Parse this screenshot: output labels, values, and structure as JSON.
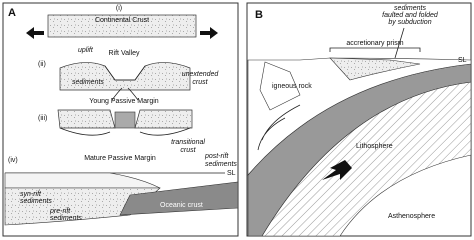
{
  "panel_a": {
    "label": "A",
    "stages": [
      {
        "numeral": "(i)",
        "title": "Continental Crust"
      },
      {
        "numeral": "(ii)",
        "title": "Rift Valley",
        "notes": [
          [
            "uplift"
          ],
          [
            "sediments"
          ],
          [
            "unextended",
            "crust"
          ]
        ]
      },
      {
        "numeral": "(iii)",
        "title": "Young Passive Margin",
        "notes": [
          [
            "transitional",
            "crust"
          ]
        ]
      },
      {
        "numeral": "(iv)",
        "title": "Mature Passive Margin",
        "notes": [
          [
            "post-rift",
            "sediments"
          ],
          [
            "SL"
          ],
          [
            "syn-rift",
            "sediments"
          ],
          [
            "pre-rift",
            "sediments"
          ],
          [
            "Oceanic crust"
          ]
        ]
      }
    ]
  },
  "panel_b": {
    "label": "B",
    "notes": [
      [
        "sediments",
        "faulted and folded",
        "by subduction"
      ],
      [
        "accretionary prism"
      ],
      [
        "SL"
      ],
      [
        "igneous rock"
      ],
      [
        "Lithosphere"
      ],
      [
        "Asthenosphere"
      ]
    ]
  }
}
